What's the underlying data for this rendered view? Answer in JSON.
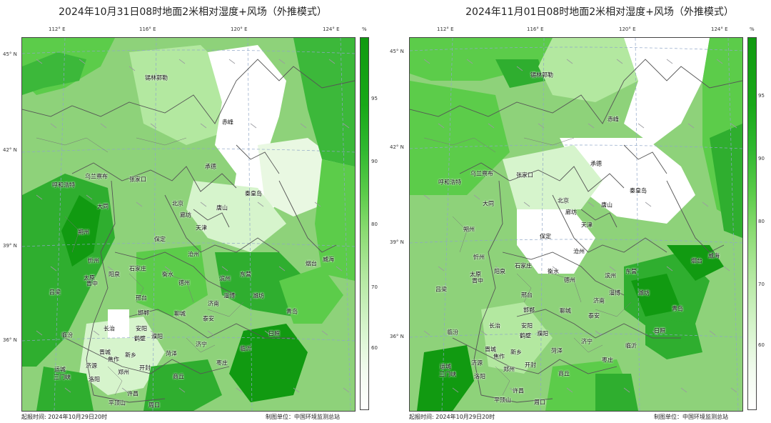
{
  "panels": [
    {
      "title": "2024年10月31日08时地面2米相对湿度+风场（外推模式）",
      "start_label": "起报时间:",
      "start_time": "2024年10月29日20时",
      "producer": "制图单位：中国环境监测总站"
    },
    {
      "title": "2024年11月01日08时地面2米相对湿度+风场（外推模式）",
      "start_label": "起报时间:",
      "start_time": "2024年10月29日20时",
      "producer": "制图单位：中国环境监测总站"
    }
  ],
  "longitude_labels": [
    "112° E",
    "116° E",
    "120° E",
    "124° E"
  ],
  "latitude_labels": [
    "45° N",
    "42° N",
    "39° N",
    "36° N"
  ],
  "colorbar": {
    "unit": "%",
    "ticks": [
      "95",
      "90",
      "80",
      "70",
      "60"
    ]
  },
  "cities": [
    "锡林郭勒",
    "赤峰",
    "承德",
    "乌兰察布",
    "张家口",
    "呼和浩特",
    "秦皇岛",
    "北京",
    "唐山",
    "大同",
    "廊坊",
    "朔州",
    "天津",
    "保定",
    "忻州",
    "沧州",
    "威海",
    "石家庄",
    "烟台",
    "太原",
    "阳泉",
    "衡水",
    "东营",
    "晋中",
    "滨州",
    "德州",
    "吕梁",
    "邢台",
    "淄博",
    "潍坊",
    "济南",
    "邯郸",
    "聊城",
    "青岛",
    "泰安",
    "长治",
    "临汾",
    "安阳",
    "日照",
    "鹤壁",
    "濮阳",
    "济宁",
    "晋城",
    "临沂",
    "菏泽",
    "焦作",
    "新乡",
    "运城",
    "济源",
    "三门峡",
    "枣庄",
    "郑州",
    "开封",
    "洛阳",
    "商丘",
    "许昌",
    "平顶山",
    "周口"
  ],
  "colors": {
    "rh_high": "#119a11",
    "rh_mid": "#5ccc4a",
    "rh_low": "#b3e8a0",
    "rh_dry": "#ffffff",
    "boundary": "#555555",
    "grid": "#8fa6c8"
  }
}
